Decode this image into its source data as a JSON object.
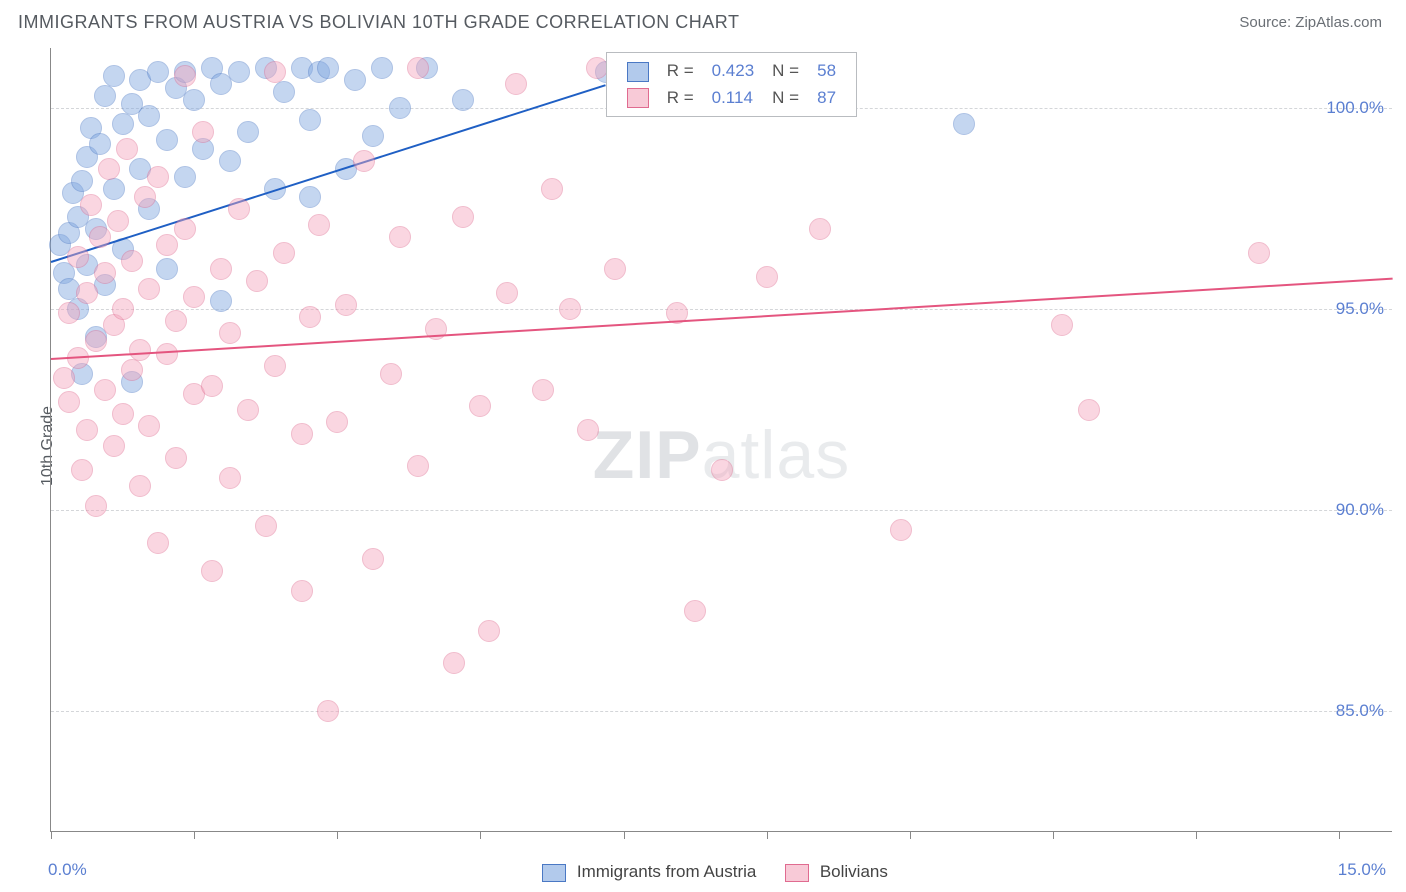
{
  "header": {
    "title": "IMMIGRANTS FROM AUSTRIA VS BOLIVIAN 10TH GRADE CORRELATION CHART",
    "source_prefix": "Source: ",
    "source": "ZipAtlas.com"
  },
  "chart": {
    "type": "scatter",
    "ylabel": "10th Grade",
    "xlim": [
      0.0,
      15.0
    ],
    "ylim": [
      82.0,
      101.5
    ],
    "x_ticks": [
      0,
      1.6,
      3.2,
      4.8,
      6.4,
      8.0,
      9.6,
      11.2,
      12.8,
      14.4
    ],
    "x_tick_label_left": "0.0%",
    "x_tick_label_right": "15.0%",
    "y_gridlines": [
      85.0,
      90.0,
      95.0,
      100.0
    ],
    "y_tick_labels": [
      "85.0%",
      "90.0%",
      "95.0%",
      "100.0%"
    ],
    "grid_color": "#d9dbde",
    "background_color": "#ffffff",
    "axis_color": "#808285",
    "marker_radius": 11,
    "marker_opacity": 0.45,
    "marker_stroke_opacity": 0.9,
    "series": [
      {
        "name": "Immigrants from Austria",
        "fill_color": "#7ea6e0",
        "stroke_color": "#4a78c4",
        "line_color": "#1f5fc4",
        "R": "0.423",
        "N": "58",
        "regression": {
          "x1": 0.0,
          "y1": 96.2,
          "x2": 6.2,
          "y2": 100.6
        },
        "points": [
          [
            0.1,
            96.6
          ],
          [
            0.15,
            95.9
          ],
          [
            0.2,
            95.5
          ],
          [
            0.2,
            96.9
          ],
          [
            0.25,
            97.9
          ],
          [
            0.3,
            95.0
          ],
          [
            0.3,
            97.3
          ],
          [
            0.35,
            98.2
          ],
          [
            0.35,
            93.4
          ],
          [
            0.4,
            96.1
          ],
          [
            0.4,
            98.8
          ],
          [
            0.45,
            99.5
          ],
          [
            0.5,
            97.0
          ],
          [
            0.5,
            94.3
          ],
          [
            0.55,
            99.1
          ],
          [
            0.6,
            95.6
          ],
          [
            0.6,
            100.3
          ],
          [
            0.7,
            98.0
          ],
          [
            0.7,
            100.8
          ],
          [
            0.8,
            96.5
          ],
          [
            0.8,
            99.6
          ],
          [
            0.9,
            100.1
          ],
          [
            0.9,
            93.2
          ],
          [
            1.0,
            98.5
          ],
          [
            1.0,
            100.7
          ],
          [
            1.1,
            97.5
          ],
          [
            1.1,
            99.8
          ],
          [
            1.2,
            100.9
          ],
          [
            1.3,
            96.0
          ],
          [
            1.3,
            99.2
          ],
          [
            1.4,
            100.5
          ],
          [
            1.5,
            98.3
          ],
          [
            1.5,
            100.9
          ],
          [
            1.6,
            100.2
          ],
          [
            1.7,
            99.0
          ],
          [
            1.8,
            101.0
          ],
          [
            1.9,
            95.2
          ],
          [
            1.9,
            100.6
          ],
          [
            2.0,
            98.7
          ],
          [
            2.1,
            100.9
          ],
          [
            2.2,
            99.4
          ],
          [
            2.4,
            101.0
          ],
          [
            2.5,
            98.0
          ],
          [
            2.6,
            100.4
          ],
          [
            2.8,
            101.0
          ],
          [
            2.9,
            97.8
          ],
          [
            2.9,
            99.7
          ],
          [
            3.0,
            100.9
          ],
          [
            3.1,
            101.0
          ],
          [
            3.3,
            98.5
          ],
          [
            3.4,
            100.7
          ],
          [
            3.6,
            99.3
          ],
          [
            3.7,
            101.0
          ],
          [
            3.9,
            100.0
          ],
          [
            4.2,
            101.0
          ],
          [
            4.6,
            100.2
          ],
          [
            6.2,
            100.9
          ],
          [
            10.2,
            99.6
          ]
        ]
      },
      {
        "name": "Bolivians",
        "fill_color": "#f4a6bd",
        "stroke_color": "#e06b90",
        "line_color": "#e4557f",
        "R": "0.114",
        "N": "87",
        "regression": {
          "x1": 0.0,
          "y1": 93.8,
          "x2": 15.0,
          "y2": 95.8
        },
        "points": [
          [
            0.15,
            93.3
          ],
          [
            0.2,
            94.9
          ],
          [
            0.2,
            92.7
          ],
          [
            0.3,
            96.3
          ],
          [
            0.3,
            93.8
          ],
          [
            0.35,
            91.0
          ],
          [
            0.4,
            95.4
          ],
          [
            0.4,
            92.0
          ],
          [
            0.45,
            97.6
          ],
          [
            0.5,
            94.2
          ],
          [
            0.5,
            90.1
          ],
          [
            0.55,
            96.8
          ],
          [
            0.6,
            93.0
          ],
          [
            0.6,
            95.9
          ],
          [
            0.65,
            98.5
          ],
          [
            0.7,
            91.6
          ],
          [
            0.7,
            94.6
          ],
          [
            0.75,
            97.2
          ],
          [
            0.8,
            92.4
          ],
          [
            0.8,
            95.0
          ],
          [
            0.85,
            99.0
          ],
          [
            0.9,
            93.5
          ],
          [
            0.9,
            96.2
          ],
          [
            1.0,
            90.6
          ],
          [
            1.0,
            94.0
          ],
          [
            1.05,
            97.8
          ],
          [
            1.1,
            92.1
          ],
          [
            1.1,
            95.5
          ],
          [
            1.2,
            98.3
          ],
          [
            1.2,
            89.2
          ],
          [
            1.3,
            93.9
          ],
          [
            1.3,
            96.6
          ],
          [
            1.4,
            91.3
          ],
          [
            1.4,
            94.7
          ],
          [
            1.5,
            97.0
          ],
          [
            1.5,
            100.8
          ],
          [
            1.6,
            92.9
          ],
          [
            1.6,
            95.3
          ],
          [
            1.7,
            99.4
          ],
          [
            1.8,
            88.5
          ],
          [
            1.8,
            93.1
          ],
          [
            1.9,
            96.0
          ],
          [
            2.0,
            90.8
          ],
          [
            2.0,
            94.4
          ],
          [
            2.1,
            97.5
          ],
          [
            2.2,
            92.5
          ],
          [
            2.3,
            95.7
          ],
          [
            2.4,
            89.6
          ],
          [
            2.5,
            100.9
          ],
          [
            2.5,
            93.6
          ],
          [
            2.6,
            96.4
          ],
          [
            2.8,
            91.9
          ],
          [
            2.8,
            88.0
          ],
          [
            2.9,
            94.8
          ],
          [
            3.0,
            97.1
          ],
          [
            3.1,
            85.0
          ],
          [
            3.2,
            92.2
          ],
          [
            3.3,
            95.1
          ],
          [
            3.5,
            98.7
          ],
          [
            3.6,
            88.8
          ],
          [
            3.8,
            93.4
          ],
          [
            3.9,
            96.8
          ],
          [
            4.1,
            91.1
          ],
          [
            4.1,
            101.0
          ],
          [
            4.3,
            94.5
          ],
          [
            4.5,
            86.2
          ],
          [
            4.6,
            97.3
          ],
          [
            4.8,
            92.6
          ],
          [
            4.9,
            87.0
          ],
          [
            5.1,
            95.4
          ],
          [
            5.2,
            100.6
          ],
          [
            5.5,
            93.0
          ],
          [
            5.6,
            98.0
          ],
          [
            5.8,
            95.0
          ],
          [
            6.0,
            92.0
          ],
          [
            6.1,
            101.0
          ],
          [
            6.3,
            96.0
          ],
          [
            7.0,
            94.9
          ],
          [
            7.2,
            87.5
          ],
          [
            7.5,
            91.0
          ],
          [
            7.8,
            100.9
          ],
          [
            8.0,
            95.8
          ],
          [
            8.6,
            97.0
          ],
          [
            9.5,
            89.5
          ],
          [
            11.3,
            94.6
          ],
          [
            11.6,
            92.5
          ],
          [
            13.5,
            96.4
          ]
        ]
      }
    ],
    "legend_top": {
      "r_label": "R =",
      "n_label": "N ="
    },
    "legend_bottom": {
      "items": [
        "Immigrants from Austria",
        "Bolivians"
      ]
    },
    "watermark": {
      "bold": "ZIP",
      "rest": "atlas"
    }
  }
}
